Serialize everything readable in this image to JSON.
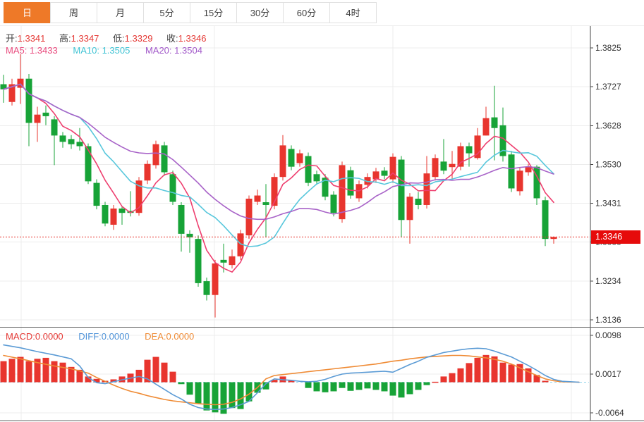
{
  "tabs": {
    "items": [
      {
        "label": "日",
        "active": true
      },
      {
        "label": "周",
        "active": false
      },
      {
        "label": "月",
        "active": false
      },
      {
        "label": "5分",
        "active": false
      },
      {
        "label": "15分",
        "active": false
      },
      {
        "label": "30分",
        "active": false
      },
      {
        "label": "60分",
        "active": false
      },
      {
        "label": "4时",
        "active": false
      }
    ]
  },
  "info": {
    "open_label": "开:",
    "open": "1.3341",
    "high_label": "高:",
    "high": "1.3347",
    "low_label": "低:",
    "low": "1.3329",
    "close_label": "收:",
    "close": "1.3346",
    "ma5_label": "MA5:",
    "ma5": "1.3433",
    "ma10_label": "MA10:",
    "ma10": "1.3505",
    "ma20_label": "MA20:",
    "ma20": "1.3504"
  },
  "macd_header": {
    "macd_label": "MACD:",
    "macd": "0.0000",
    "diff_label": "DIFF:",
    "diff": "0.0000",
    "dea_label": "DEA:",
    "dea": "0.0000"
  },
  "price_badge": {
    "value": "1.3346"
  },
  "colors": {
    "up": "#e8352e",
    "down": "#17a337",
    "ma5": "#ee3f6f",
    "ma10": "#58c7dc",
    "ma20": "#a863c8",
    "diff": "#5b9bd5",
    "dea": "#ef8b35",
    "tab_accent": "#ee7928",
    "badge_bg": "#e60b0b",
    "current_line": "#e8352e",
    "grid": "#ececec",
    "axis_text": "#333333",
    "zero_dash": "#8fd3ea",
    "border": "#555555"
  },
  "chart_data": {
    "type": "candlestick",
    "title": "",
    "main": {
      "y_axis_labels": [
        {
          "label": "1.3825",
          "value": 1.3825
        },
        {
          "label": "1.3727",
          "value": 1.3727
        },
        {
          "label": "1.3628",
          "value": 1.3628
        },
        {
          "label": "1.3530",
          "value": 1.353
        },
        {
          "label": "1.3431",
          "value": 1.3431
        },
        {
          "label": "1.3333",
          "value": 1.3333
        },
        {
          "label": "1.3234",
          "value": 1.3234
        },
        {
          "label": "1.3136",
          "value": 1.3136
        }
      ],
      "current_price": 1.3346,
      "ma_periods": [
        5,
        10,
        20
      ],
      "candles": [
        [
          1.3733,
          1.3757,
          1.3686,
          1.372
        ],
        [
          1.3688,
          1.3747,
          1.3679,
          1.3733
        ],
        [
          1.3724,
          1.3809,
          1.3683,
          1.3747
        ],
        [
          1.3747,
          1.3759,
          1.3576,
          1.3635
        ],
        [
          1.3635,
          1.3676,
          1.3587,
          1.3656
        ],
        [
          1.3661,
          1.3679,
          1.3629,
          1.3652
        ],
        [
          1.3644,
          1.3652,
          1.3528,
          1.3603
        ],
        [
          1.3603,
          1.3612,
          1.3572,
          1.3587
        ],
        [
          1.3594,
          1.3604,
          1.3569,
          1.3581
        ],
        [
          1.3587,
          1.3622,
          1.3565,
          1.3576
        ],
        [
          1.3576,
          1.3583,
          1.348,
          1.3487
        ],
        [
          1.3483,
          1.3492,
          1.3416,
          1.3425
        ],
        [
          1.3427,
          1.3435,
          1.3373,
          1.338
        ],
        [
          1.3377,
          1.3427,
          1.3364,
          1.3418
        ],
        [
          1.3418,
          1.3425,
          1.3377,
          1.3407
        ],
        [
          1.3412,
          1.3462,
          1.3398,
          1.3407
        ],
        [
          1.3407,
          1.3498,
          1.34,
          1.3489
        ],
        [
          1.3489,
          1.354,
          1.348,
          1.3531
        ],
        [
          1.3528,
          1.359,
          1.3519,
          1.3581
        ],
        [
          1.3578,
          1.3587,
          1.3501,
          1.351
        ],
        [
          1.3505,
          1.3514,
          1.3427,
          1.3435
        ],
        [
          1.3427,
          1.3434,
          1.3309,
          1.3354
        ],
        [
          1.3354,
          1.3363,
          1.3306,
          1.3345
        ],
        [
          1.3341,
          1.335,
          1.322,
          1.3229
        ],
        [
          1.3234,
          1.3243,
          1.3185,
          1.3199
        ],
        [
          1.3199,
          1.3288,
          1.3142,
          1.3279
        ],
        [
          1.3288,
          1.3329,
          1.3256,
          1.3281
        ],
        [
          1.3275,
          1.3314,
          1.3266,
          1.3297
        ],
        [
          1.3297,
          1.3364,
          1.3288,
          1.3355
        ],
        [
          1.335,
          1.3451,
          1.3341,
          1.3443
        ],
        [
          1.3435,
          1.3466,
          1.3427,
          1.3451
        ],
        [
          1.3434,
          1.348,
          1.3345,
          1.3427
        ],
        [
          1.3425,
          1.3507,
          1.3416,
          1.3498
        ],
        [
          1.3498,
          1.3604,
          1.3489,
          1.3578
        ],
        [
          1.3569,
          1.3578,
          1.3515,
          1.3524
        ],
        [
          1.3533,
          1.3567,
          1.3524,
          1.3558
        ],
        [
          1.3551,
          1.356,
          1.3475,
          1.3483
        ],
        [
          1.3505,
          1.3514,
          1.3478,
          1.3487
        ],
        [
          1.3496,
          1.3505,
          1.3439,
          1.3448
        ],
        [
          1.3453,
          1.3462,
          1.3398,
          1.3407
        ],
        [
          1.3391,
          1.3537,
          1.3382,
          1.3528
        ],
        [
          1.3515,
          1.3524,
          1.3443,
          1.3451
        ],
        [
          1.3444,
          1.3489,
          1.3435,
          1.348
        ],
        [
          1.3478,
          1.3507,
          1.3469,
          1.3498
        ],
        [
          1.3492,
          1.3521,
          1.3483,
          1.3512
        ],
        [
          1.3514,
          1.3523,
          1.3492,
          1.3501
        ],
        [
          1.3492,
          1.3558,
          1.3483,
          1.3549
        ],
        [
          1.3542,
          1.3551,
          1.3345,
          1.3389
        ],
        [
          1.3389,
          1.3457,
          1.3329,
          1.3448
        ],
        [
          1.3443,
          1.346,
          1.3416,
          1.3427
        ],
        [
          1.3427,
          1.3551,
          1.3418,
          1.3507
        ],
        [
          1.3498,
          1.3555,
          1.3489,
          1.3546
        ],
        [
          1.3537,
          1.3594,
          1.3505,
          1.3514
        ],
        [
          1.3523,
          1.3564,
          1.3492,
          1.3531
        ],
        [
          1.3524,
          1.3585,
          1.3515,
          1.3576
        ],
        [
          1.3576,
          1.3585,
          1.3524,
          1.3558
        ],
        [
          1.3546,
          1.3622,
          1.3542,
          1.3603
        ],
        [
          1.3603,
          1.3676,
          1.3603,
          1.3647
        ],
        [
          1.3649,
          1.3729,
          1.354,
          1.3622
        ],
        [
          1.3629,
          1.3674,
          1.3537,
          1.3551
        ],
        [
          1.3555,
          1.3564,
          1.346,
          1.3469
        ],
        [
          1.3462,
          1.3523,
          1.3451,
          1.3514
        ],
        [
          1.351,
          1.3531,
          1.3501,
          1.3523
        ],
        [
          1.3524,
          1.3528,
          1.3427,
          1.3444
        ],
        [
          1.3439,
          1.3448,
          1.3323,
          1.3341
        ],
        [
          1.3341,
          1.3347,
          1.3329,
          1.3346
        ]
      ]
    },
    "macd": {
      "y_axis_labels": [
        {
          "label": "0.0098",
          "value": 0.0098
        },
        {
          "label": "0.0017",
          "value": 0.0017
        },
        {
          "label": "-0.0064",
          "value": -0.0064
        }
      ],
      "histogram": [
        0.0044,
        0.0049,
        0.0053,
        0.0044,
        0.0049,
        0.0051,
        0.0044,
        0.0041,
        0.0032,
        0.0026,
        0.0012,
        0.0007,
        0.0003,
        0.0006,
        0.0012,
        0.0018,
        0.0026,
        0.0047,
        0.0053,
        0.0041,
        0.0022,
        -0.0004,
        -0.0026,
        -0.0044,
        -0.0059,
        -0.0063,
        -0.0066,
        -0.0054,
        -0.0056,
        -0.004,
        -0.0022,
        -0.0015,
        0.0005,
        0.0012,
        0.0004,
        0.0,
        -0.0012,
        -0.0019,
        -0.0021,
        -0.0019,
        -0.0012,
        -0.0018,
        -0.0016,
        -0.0013,
        -0.0016,
        -0.0019,
        -0.0028,
        -0.0032,
        -0.0025,
        -0.0016,
        -0.0006,
        0.0001,
        0.0012,
        0.0019,
        0.0029,
        0.004,
        0.0051,
        0.0057,
        0.0054,
        0.0041,
        0.0037,
        0.0038,
        0.0029,
        0.0015,
        0.0003,
        0.0
      ],
      "diff_line": [
        [
          0,
          0.0078
        ],
        [
          2,
          0.0072
        ],
        [
          4,
          0.0064
        ],
        [
          6,
          0.0057
        ],
        [
          8,
          0.0049
        ],
        [
          9,
          0.0034
        ],
        [
          10,
          0.001
        ],
        [
          11,
          -0.0001
        ],
        [
          12,
          -0.0003
        ],
        [
          13,
          0.0001
        ],
        [
          14,
          0.0005
        ],
        [
          16,
          0.0012
        ],
        [
          17,
          0.0007
        ],
        [
          18,
          -0.0004
        ],
        [
          19,
          -0.0015
        ],
        [
          20,
          -0.0026
        ],
        [
          21,
          -0.0035
        ],
        [
          22,
          -0.0046
        ],
        [
          23,
          -0.0053
        ],
        [
          24,
          -0.0056
        ],
        [
          25,
          -0.0057
        ],
        [
          26,
          -0.0056
        ],
        [
          27,
          -0.0053
        ],
        [
          28,
          -0.0047
        ],
        [
          29,
          -0.004
        ],
        [
          30,
          -0.0022
        ],
        [
          31,
          -0.0003
        ],
        [
          32,
          0.0007
        ],
        [
          33,
          0.0005
        ],
        [
          34,
          0.0004
        ],
        [
          35,
          0.0002
        ],
        [
          36,
          0.0001
        ],
        [
          37,
          0.0002
        ],
        [
          38,
          0.0006
        ],
        [
          39,
          0.0012
        ],
        [
          40,
          0.0017
        ],
        [
          41,
          0.0019
        ],
        [
          42,
          0.002
        ],
        [
          43,
          0.0021
        ],
        [
          44,
          0.0022
        ],
        [
          45,
          0.0023
        ],
        [
          46,
          0.0021
        ],
        [
          47,
          0.0029
        ],
        [
          48,
          0.0037
        ],
        [
          49,
          0.0044
        ],
        [
          50,
          0.0052
        ],
        [
          51,
          0.0057
        ],
        [
          52,
          0.0062
        ],
        [
          53,
          0.0065
        ],
        [
          54,
          0.0068
        ],
        [
          55,
          0.007
        ],
        [
          56,
          0.0071
        ],
        [
          57,
          0.007
        ],
        [
          58,
          0.0065
        ],
        [
          59,
          0.0059
        ],
        [
          60,
          0.0053
        ],
        [
          61,
          0.0044
        ],
        [
          62,
          0.0035
        ],
        [
          63,
          0.0025
        ],
        [
          64,
          0.0014
        ],
        [
          65,
          0.0006
        ],
        [
          66,
          0.0002
        ],
        [
          68,
          0.0
        ]
      ],
      "dea_line": [
        [
          0,
          0.0056
        ],
        [
          2,
          0.0049
        ],
        [
          4,
          0.0041
        ],
        [
          6,
          0.0034
        ],
        [
          8,
          0.0028
        ],
        [
          10,
          0.0019
        ],
        [
          11,
          0.001
        ],
        [
          12,
          0.0002
        ],
        [
          13,
          -0.0006
        ],
        [
          14,
          -0.0013
        ],
        [
          15,
          -0.0019
        ],
        [
          16,
          -0.0023
        ],
        [
          17,
          -0.0028
        ],
        [
          18,
          -0.0032
        ],
        [
          19,
          -0.0036
        ],
        [
          20,
          -0.0039
        ],
        [
          21,
          -0.0041
        ],
        [
          22,
          -0.0043
        ],
        [
          23,
          -0.0045
        ],
        [
          24,
          -0.0046
        ],
        [
          25,
          -0.0047
        ],
        [
          26,
          -0.0046
        ],
        [
          27,
          -0.0042
        ],
        [
          28,
          -0.0035
        ],
        [
          29,
          -0.0025
        ],
        [
          30,
          -0.0011
        ],
        [
          31,
          0.0007
        ],
        [
          32,
          0.0014
        ],
        [
          33,
          0.0016
        ],
        [
          34,
          0.0018
        ],
        [
          35,
          0.002
        ],
        [
          36,
          0.0022
        ],
        [
          37,
          0.0024
        ],
        [
          38,
          0.0026
        ],
        [
          39,
          0.0028
        ],
        [
          40,
          0.003
        ],
        [
          41,
          0.0032
        ],
        [
          42,
          0.0034
        ],
        [
          43,
          0.0036
        ],
        [
          44,
          0.0038
        ],
        [
          45,
          0.0041
        ],
        [
          46,
          0.0044
        ],
        [
          47,
          0.0046
        ],
        [
          48,
          0.0049
        ],
        [
          49,
          0.0051
        ],
        [
          50,
          0.0053
        ],
        [
          51,
          0.0054
        ],
        [
          52,
          0.0055
        ],
        [
          53,
          0.0056
        ],
        [
          54,
          0.0056
        ],
        [
          55,
          0.0055
        ],
        [
          56,
          0.0053
        ],
        [
          57,
          0.0051
        ],
        [
          58,
          0.0048
        ],
        [
          59,
          0.0044
        ],
        [
          60,
          0.0038
        ],
        [
          61,
          0.003
        ],
        [
          62,
          0.0022
        ],
        [
          63,
          0.0014
        ],
        [
          64,
          0.0007
        ],
        [
          65,
          0.0003
        ],
        [
          66,
          0.0001
        ],
        [
          68,
          0.0
        ]
      ]
    }
  }
}
